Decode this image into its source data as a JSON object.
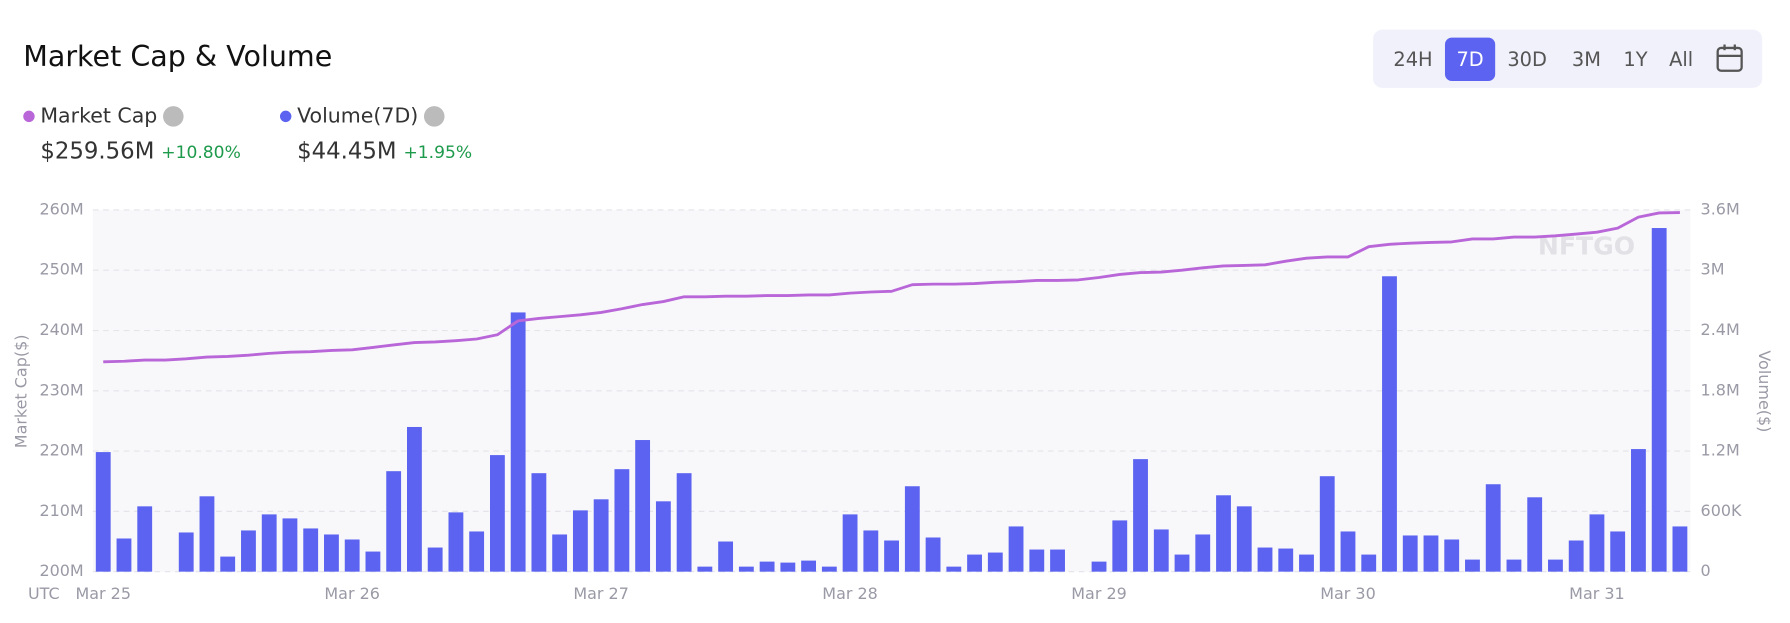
{
  "title": "Market Cap & Volume",
  "range_buttons": [
    "24H",
    "7D",
    "30D",
    "3M",
    "1Y",
    "All"
  ],
  "selected_range": 1,
  "stats": [
    {
      "name": "Market Cap",
      "value": "$259.56M",
      "change": "+10.80%"
    },
    {
      "name": "Volume(7D)",
      "value": "$44.45M",
      "change": "+1.95%"
    }
  ],
  "chart_data": {
    "type": "bar",
    "watermark": "NFTGO",
    "x_prefix": "UTC",
    "ylabel": "Market Cap($)",
    "y2label": "Volume($)",
    "grid": true,
    "categories": [
      "Mar 25",
      null,
      null,
      null,
      null,
      null,
      null,
      null,
      null,
      null,
      null,
      null,
      "Mar 26",
      null,
      null,
      null,
      null,
      null,
      null,
      null,
      null,
      null,
      null,
      null,
      "Mar 27",
      null,
      null,
      null,
      null,
      null,
      null,
      null,
      null,
      null,
      null,
      null,
      "Mar 28",
      null,
      null,
      null,
      null,
      null,
      null,
      null,
      null,
      null,
      null,
      null,
      "Mar 29",
      null,
      null,
      null,
      null,
      null,
      null,
      null,
      null,
      null,
      null,
      null,
      "Mar 30",
      null,
      null,
      null,
      null,
      null,
      null,
      null,
      null,
      null,
      null,
      null,
      "Mar 31",
      null,
      null,
      null,
      null
    ],
    "ylim": [
      200,
      260
    ],
    "yticks": [
      {
        "value": 200,
        "label": "200M"
      },
      {
        "value": 210,
        "label": "210M"
      },
      {
        "value": 220,
        "label": "220M"
      },
      {
        "value": 230,
        "label": "230M"
      },
      {
        "value": 240,
        "label": "240M"
      },
      {
        "value": 250,
        "label": "250M"
      },
      {
        "value": 260,
        "label": "260M"
      }
    ],
    "y2lim": [
      0,
      3.6
    ],
    "y2ticks": [
      0,
      {
        "value": 0.6,
        "label": "600K"
      },
      {
        "value": 1.2,
        "label": "1.2M"
      },
      {
        "value": 1.8,
        "label": "1.8M"
      },
      {
        "value": 2.4,
        "label": "2.4M"
      },
      {
        "value": 3,
        "label": "3M"
      },
      {
        "value": 3.6,
        "label": "3.6M"
      }
    ],
    "series": [
      {
        "name": "Market Cap",
        "type": "line",
        "color": "#b966d8",
        "values": [
          234.8,
          234.9,
          235.1,
          235.1,
          235.3,
          235.6,
          235.7,
          235.9,
          236.2,
          236.4,
          236.5,
          236.7,
          236.8,
          237.2,
          237.6,
          238.0,
          238.1,
          238.3,
          238.6,
          239.3,
          241.6,
          242.0,
          242.3,
          242.6,
          243.0,
          243.6,
          244.3,
          244.8,
          245.6,
          245.6,
          245.7,
          245.7,
          245.8,
          245.8,
          245.9,
          245.9,
          246.2,
          246.4,
          246.5,
          247.6,
          247.7,
          247.7,
          247.8,
          248.0,
          248.1,
          248.3,
          248.3,
          248.4,
          248.8,
          249.3,
          249.6,
          249.7,
          250.0,
          250.4,
          250.7,
          250.8,
          250.9,
          251.5,
          252.0,
          252.2,
          252.2,
          253.9,
          254.3,
          254.5,
          254.6,
          254.7,
          255.2,
          255.2,
          255.5,
          255.5,
          255.7,
          256.0,
          256.3,
          257.0,
          258.8,
          259.5,
          259.56
        ]
      },
      {
        "name": "Volume(7D)",
        "type": "bar",
        "axis": "y2",
        "color": "#5b63f0",
        "values": [
          1.19,
          0.33,
          0.65,
          0,
          0.39,
          0.75,
          0.15,
          0.41,
          0.57,
          0.53,
          0.43,
          0.37,
          0.32,
          0.2,
          1.0,
          1.44,
          0.24,
          0.59,
          0.4,
          1.16,
          2.58,
          0.98,
          0.37,
          0.61,
          0.72,
          1.02,
          1.31,
          0.7,
          0.98,
          0.05,
          0.3,
          0.05,
          0.1,
          0.09,
          0.11,
          0.05,
          0.57,
          0.41,
          0.31,
          0.85,
          0.34,
          0.05,
          0.17,
          0.19,
          0.45,
          0.22,
          0.22,
          0,
          0.1,
          0.51,
          1.12,
          0.42,
          0.17,
          0.37,
          0.76,
          0.65,
          0.24,
          0.23,
          0.17,
          0.95,
          0.4,
          0.17,
          2.94,
          0.36,
          0.36,
          0.32,
          0.12,
          0.87,
          0.12,
          0.74,
          0.12,
          0.31,
          0.57,
          0.4,
          1.22,
          3.42,
          0.45
        ]
      }
    ]
  }
}
